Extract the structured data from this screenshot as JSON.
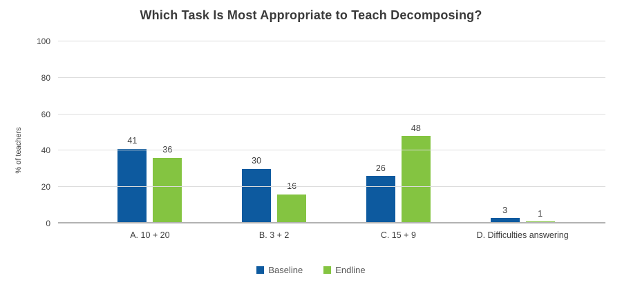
{
  "chart_data": {
    "type": "bar",
    "title": "Which Task Is Most Appropriate to Teach Decomposing?",
    "categories": [
      "A. 10 + 20",
      "B. 3 + 2",
      "C. 15 + 9",
      "D. Difficulties answering"
    ],
    "series": [
      {
        "name": "Baseline",
        "color": "#0d5a9f",
        "values": [
          41,
          30,
          26,
          3
        ]
      },
      {
        "name": "Endline",
        "color": "#84c441",
        "values": [
          36,
          16,
          48,
          1
        ]
      }
    ],
    "xlabel": "",
    "ylabel": "% of teachers",
    "ylim": [
      0,
      100
    ],
    "yticks": [
      0,
      20,
      40,
      60,
      80,
      100
    ],
    "grid": true,
    "legend_position": "bottom",
    "value_labels_shown": true,
    "colors": {
      "background": "#ffffff",
      "gridline": "#dcdcdc",
      "axis_line": "#b2b2b2",
      "title_text": "#3a3a3a",
      "label_text": "#3f3f3f"
    }
  }
}
